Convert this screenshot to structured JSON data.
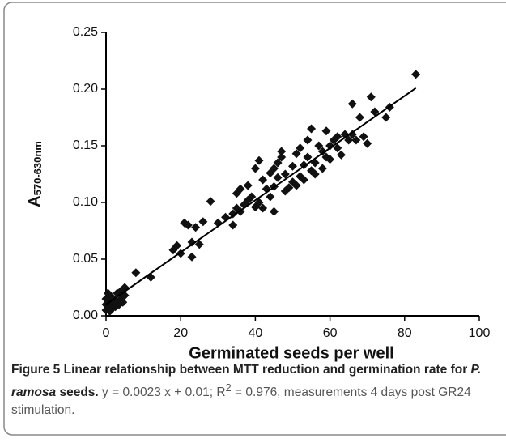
{
  "chart_data": {
    "type": "scatter",
    "ylabel": "A",
    "ylabel_sub": "570-630nm",
    "xlabel": "Germinated seeds per well",
    "x": [
      0,
      0,
      0,
      0.5,
      1,
      1,
      1.5,
      2,
      2,
      2.5,
      3,
      3,
      3.5,
      4,
      4,
      4.5,
      5,
      5,
      0.5,
      1,
      8,
      12,
      18,
      19,
      20,
      21,
      22,
      23,
      23,
      24,
      25,
      26,
      28,
      30,
      32,
      34,
      34,
      35,
      35,
      36,
      36,
      37,
      38,
      38,
      39,
      40,
      40,
      41,
      41,
      42,
      42,
      43,
      44,
      44,
      45,
      45,
      45,
      46,
      46,
      47,
      47,
      48,
      48,
      49,
      50,
      50,
      51,
      51,
      52,
      52,
      53,
      53,
      54,
      54,
      55,
      55,
      56,
      56,
      57,
      58,
      58,
      59,
      59,
      60,
      60,
      61,
      62,
      62,
      63,
      64,
      65,
      66,
      66,
      67,
      68,
      69,
      70,
      71,
      72,
      75,
      76,
      83
    ],
    "values": [
      0.005,
      0.01,
      0.015,
      0.008,
      0.012,
      0.018,
      0.006,
      0.01,
      0.015,
      0.008,
      0.012,
      0.02,
      0.01,
      0.015,
      0.022,
      0.012,
      0.018,
      0.025,
      0.02,
      0.004,
      0.038,
      0.034,
      0.058,
      0.062,
      0.055,
      0.082,
      0.08,
      0.052,
      0.065,
      0.078,
      0.063,
      0.083,
      0.101,
      0.082,
      0.087,
      0.08,
      0.09,
      0.095,
      0.108,
      0.112,
      0.092,
      0.098,
      0.115,
      0.102,
      0.105,
      0.096,
      0.13,
      0.137,
      0.1,
      0.095,
      0.12,
      0.112,
      0.126,
      0.105,
      0.114,
      0.092,
      0.13,
      0.122,
      0.135,
      0.14,
      0.145,
      0.11,
      0.125,
      0.113,
      0.118,
      0.132,
      0.115,
      0.143,
      0.123,
      0.148,
      0.133,
      0.12,
      0.14,
      0.155,
      0.128,
      0.165,
      0.135,
      0.125,
      0.15,
      0.13,
      0.145,
      0.163,
      0.14,
      0.138,
      0.15,
      0.155,
      0.158,
      0.148,
      0.142,
      0.16,
      0.155,
      0.187,
      0.16,
      0.155,
      0.175,
      0.158,
      0.152,
      0.193,
      0.18,
      0.175,
      0.184,
      0.213
    ],
    "color": "#111111",
    "trendline": {
      "slope": 0.0023,
      "intercept": 0.01,
      "x": [
        0,
        83
      ]
    },
    "xlim": [
      0,
      100
    ],
    "xticks": [
      0,
      20,
      40,
      60,
      80,
      100
    ],
    "ylim": [
      0,
      0.25
    ],
    "yticks": [
      {
        "value": 0,
        "label": "0.00"
      },
      {
        "value": 0.05,
        "label": "0.05"
      },
      {
        "value": 0.1,
        "label": "0.10"
      },
      {
        "value": 0.15,
        "label": "0.15"
      },
      {
        "value": 0.2,
        "label": "0.20"
      },
      {
        "value": 0.25,
        "label": "0.25"
      }
    ]
  },
  "caption": {
    "bold": "Figure 5 Linear relationship between MTT reduction and germination rate for ",
    "italic": "P. ramosa",
    "bold_end": " seeds.",
    "text": " y = 0.0023 x + 0.01; R",
    "sup": "2",
    "text_end": " = 0.976, measurements 4 days post GR24 stimulation."
  }
}
